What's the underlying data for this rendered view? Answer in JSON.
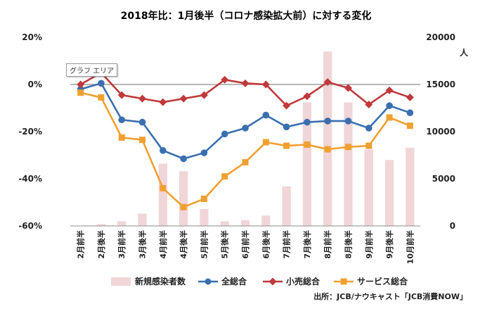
{
  "chart_data": {
    "type": "bar+line",
    "title": "2018年比：1月後半（コロナ感染拡大前）に対する変化",
    "categories": [
      "2月前半",
      "2月後半",
      "3月前半",
      "3月後半",
      "4月前半",
      "4月後半",
      "5月前半",
      "5月後半",
      "6月前半",
      "6月後半",
      "7月前半",
      "7月後半",
      "8月前半",
      "8月後半",
      "9月前半",
      "9月後半",
      "10月前半"
    ],
    "y_left": {
      "min": -60,
      "max": 20,
      "step": 20,
      "unit": "%"
    },
    "y_right": {
      "min": 0,
      "max": 20000,
      "step": 5000,
      "label": "人"
    },
    "bars": {
      "name": "新規感染者数",
      "color": "#f0d6d8",
      "values": [
        0,
        200,
        500,
        1300,
        6600,
        5800,
        1800,
        500,
        600,
        1100,
        4200,
        13100,
        18500,
        13100,
        8100,
        7000,
        8300
      ]
    },
    "series": [
      {
        "name": "全総合",
        "color": "#3a6fb0",
        "marker": "circle",
        "values": [
          -2,
          0.5,
          -15,
          -16,
          -28,
          -31.5,
          -29,
          -21,
          -18.5,
          -13,
          -18,
          -16,
          -15.5,
          -15.5,
          -18.5,
          -9,
          -12
        ]
      },
      {
        "name": "小売総合",
        "color": "#c0393b",
        "marker": "diamond",
        "values": [
          0,
          5,
          -4.5,
          -6,
          -7.5,
          -6,
          -4.5,
          2,
          0.5,
          0,
          -9,
          -5,
          1,
          -1.5,
          -8.5,
          -2.5,
          -5.5
        ]
      },
      {
        "name": "サービス総合",
        "color": "#f0a030",
        "marker": "square",
        "values": [
          -3.5,
          -5.5,
          -22.5,
          -23.5,
          -44,
          -52,
          -48.5,
          -39,
          -33,
          -24.5,
          -26,
          -25.5,
          -27.5,
          -26.5,
          -26,
          -14,
          -17.5
        ]
      }
    ],
    "grid": false,
    "legend_position": "bottom"
  },
  "tooltip": "グラフ エリア",
  "source": "出所：JCB/ナウキャスト「JCB消費NOW」"
}
